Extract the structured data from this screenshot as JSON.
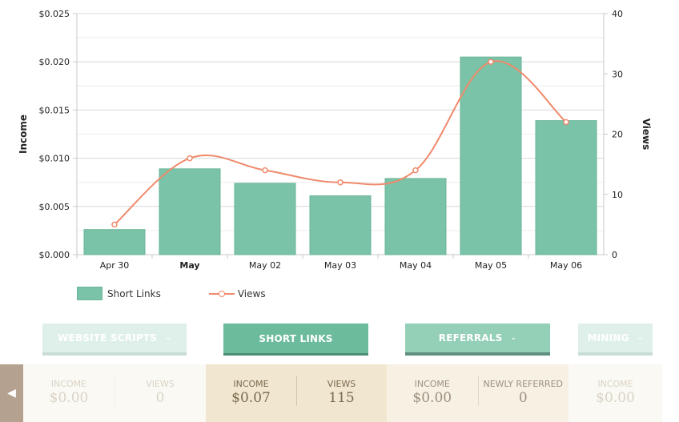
{
  "chart_data": {
    "type": "bar",
    "categories": [
      "Apr 30",
      "May",
      "May 02",
      "May 03",
      "May 04",
      "May 05",
      "May 06"
    ],
    "bold_category_index": 1,
    "series": [
      {
        "name": "Short Links",
        "type": "bar",
        "axis": "left",
        "values": [
          0.0026,
          0.0089,
          0.0074,
          0.0061,
          0.0079,
          0.0205,
          0.0139
        ]
      },
      {
        "name": "Views",
        "type": "line",
        "axis": "right",
        "values": [
          5,
          16,
          14,
          12,
          14,
          32,
          22
        ]
      }
    ],
    "ylabel": "Income",
    "y2label": "Views",
    "ylim": [
      0,
      0.025
    ],
    "y2lim": [
      0,
      40
    ],
    "yticks": [
      "$0.000",
      "$0.005",
      "$0.010",
      "$0.015",
      "$0.020",
      "$0.025"
    ],
    "y2ticks": [
      "0",
      "10",
      "20",
      "30",
      "40"
    ],
    "grid": true,
    "legend_position": "bottom-left",
    "colors": {
      "bar": "#7bc3a8",
      "line": "#f0896b"
    }
  },
  "legend": {
    "bar_label": "Short Links",
    "line_label": "Views"
  },
  "tabs": [
    {
      "label": "WEBSITE SCRIPTS",
      "chevron": "chevron-down-icon"
    },
    {
      "label": "SHORT LINKS"
    },
    {
      "label": "REFERRALS",
      "chevron": "chevron-down-icon"
    },
    {
      "label": "MINING",
      "chevron": "chevron-down-icon"
    }
  ],
  "panels": {
    "website": {
      "income_label": "INCOME",
      "income_value": "$0.00",
      "views_label": "VIEWS",
      "views_value": "0"
    },
    "short": {
      "income_label": "INCOME",
      "income_value": "$0.07",
      "views_label": "VIEWS",
      "views_value": "115"
    },
    "referrals": {
      "income_label": "INCOME",
      "income_value": "$0.00",
      "referred_label": "NEWLY REFERRED",
      "referred_value": "0"
    },
    "mining": {
      "income_label": "INCOME",
      "income_value": "$0.00"
    }
  },
  "back_button": {
    "icon": "caret-left-icon",
    "glyph": "◀"
  }
}
